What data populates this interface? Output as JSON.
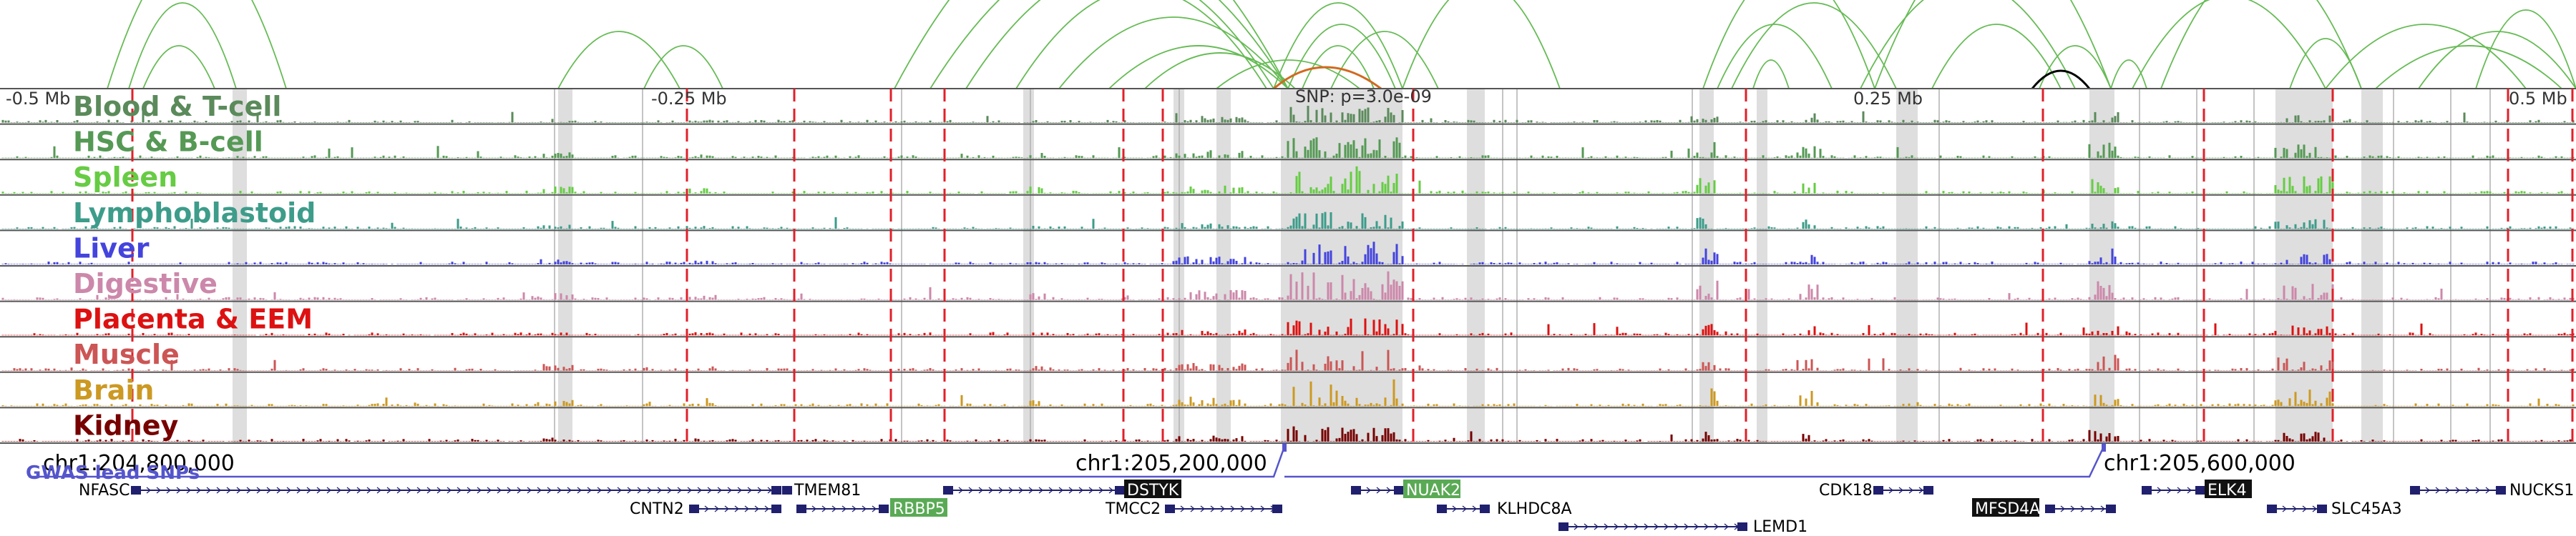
{
  "scale_labels": [
    "-0.5 Mb",
    "-0.25 Mb",
    "0.25 Mb",
    "0.5 Mb"
  ],
  "snp_label": "SNP: p=3.0e-09",
  "gwas_label": "GWAS lead SNPs",
  "coordinates": [
    "chr1:204,800,000",
    "chr1:205,200,000",
    "chr1:205,600,000"
  ],
  "tracks": [
    {
      "label": "Blood & T-cell",
      "color": "#5b8a5b"
    },
    {
      "label": "HSC & B-cell",
      "color": "#559955"
    },
    {
      "label": "Spleen",
      "color": "#66cc44"
    },
    {
      "label": "Lymphoblastoid",
      "color": "#3d9c8a"
    },
    {
      "label": "Liver",
      "color": "#4444dd"
    },
    {
      "label": "Digestive",
      "color": "#cc88aa"
    },
    {
      "label": "Placenta & EEM",
      "color": "#dd1111"
    },
    {
      "label": "Muscle",
      "color": "#cc5555"
    },
    {
      "label": "Brain",
      "color": "#cc9922"
    },
    {
      "label": "Kidney",
      "color": "#770000"
    }
  ],
  "genes": [
    {
      "name": "NFASC",
      "row": 1,
      "highlight": "none"
    },
    {
      "name": "CNTN2",
      "row": 2,
      "highlight": "none"
    },
    {
      "name": "TMEM81",
      "row": 1,
      "highlight": "none"
    },
    {
      "name": "RBBP5",
      "row": 2,
      "highlight": "green"
    },
    {
      "name": "DSTYK",
      "row": 1,
      "highlight": "black"
    },
    {
      "name": "TMCC2",
      "row": 2,
      "highlight": "none"
    },
    {
      "name": "NUAK2",
      "row": 1,
      "highlight": "green"
    },
    {
      "name": "KLHDC8A",
      "row": 2,
      "highlight": "none"
    },
    {
      "name": "LEMD1",
      "row": 3,
      "highlight": "none"
    },
    {
      "name": "CDK18",
      "row": 1,
      "highlight": "none"
    },
    {
      "name": "MFSD4A",
      "row": 2,
      "highlight": "black"
    },
    {
      "name": "ELK4",
      "row": 1,
      "highlight": "black"
    },
    {
      "name": "SLC45A3",
      "row": 2,
      "highlight": "none"
    },
    {
      "name": "NUCKS1",
      "row": 1,
      "highlight": "none"
    }
  ],
  "colors": {
    "arc": "#66bb55",
    "arc_dark": "#000000",
    "arc_highlight": "#d2691e",
    "red_dash": "#e0202a",
    "shade": "#d8d8d8",
    "gene": "#20206e",
    "gwas": "#5555cc"
  }
}
